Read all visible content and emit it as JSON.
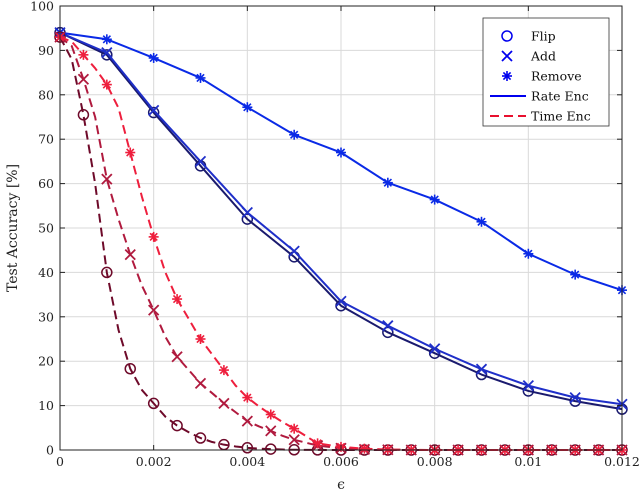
{
  "chart_data": {
    "type": "line",
    "title": "",
    "xlabel": "ϵ",
    "ylabel": "Test Accuracy [%]",
    "xlim": [
      0,
      0.012
    ],
    "ylim": [
      0,
      100
    ],
    "xticks": [
      0,
      0.002,
      0.004,
      0.006,
      0.008,
      0.01,
      0.012
    ],
    "xtick_labels": [
      "0",
      "0.002",
      "0.004",
      "0.006",
      "0.008",
      "0.01",
      "0.012"
    ],
    "yticks": [
      0,
      10,
      20,
      30,
      40,
      50,
      60,
      70,
      80,
      90,
      100
    ],
    "ytick_labels": [
      "0",
      "10",
      "20",
      "30",
      "40",
      "50",
      "60",
      "70",
      "80",
      "90",
      "100"
    ],
    "grid": true,
    "legend_position": "top-right",
    "legend": [
      {
        "label": "Flip",
        "kind": "marker",
        "marker": "circle",
        "color": "#0000ee"
      },
      {
        "label": "Add",
        "kind": "marker",
        "marker": "cross",
        "color": "#0000ee"
      },
      {
        "label": "Remove",
        "kind": "marker",
        "marker": "asterisk",
        "color": "#0000ee"
      },
      {
        "label": "Rate Enc",
        "kind": "line",
        "dash": "solid",
        "color": "#0000ee"
      },
      {
        "label": "Time Enc",
        "kind": "line",
        "dash": "dashed",
        "color": "#e8102e"
      }
    ],
    "series": [
      {
        "encoding": "Rate Enc",
        "perturbation": "Flip",
        "marker": "circle",
        "dash": "solid",
        "color": "#1a1a6e",
        "x": [
          0,
          0.001,
          0.002,
          0.003,
          0.004,
          0.005,
          0.006,
          0.007,
          0.008,
          0.009,
          0.01,
          0.011,
          0.012
        ],
        "y": [
          94,
          89,
          76,
          64,
          52,
          43.5,
          32.5,
          26.5,
          21.8,
          17,
          13.3,
          11,
          9.2
        ]
      },
      {
        "encoding": "Rate Enc",
        "perturbation": "Add",
        "marker": "cross",
        "dash": "solid",
        "color": "#1f2fc9",
        "x": [
          0,
          0.001,
          0.002,
          0.003,
          0.004,
          0.005,
          0.006,
          0.007,
          0.008,
          0.009,
          0.01,
          0.011,
          0.012
        ],
        "y": [
          94,
          89.5,
          76.5,
          65,
          53.5,
          44.8,
          33.5,
          28,
          22.8,
          18.2,
          14.5,
          11.8,
          10.3
        ]
      },
      {
        "encoding": "Rate Enc",
        "perturbation": "Remove",
        "marker": "asterisk",
        "dash": "solid",
        "color": "#0a2ae6",
        "x": [
          0,
          0.001,
          0.002,
          0.003,
          0.004,
          0.005,
          0.006,
          0.007,
          0.008,
          0.009,
          0.01,
          0.011,
          0.012
        ],
        "y": [
          94,
          92.5,
          88.3,
          83.8,
          77.2,
          71,
          67,
          60.2,
          56.4,
          51.4,
          44.2,
          39.5,
          36
        ]
      },
      {
        "encoding": "Time Enc",
        "perturbation": "Flip",
        "marker": "circle",
        "dash": "dashed",
        "color": "#6e0a2a",
        "x": [
          0,
          0.00025,
          0.0005,
          0.00075,
          0.001,
          0.00125,
          0.0015,
          0.00175,
          0.002,
          0.00225,
          0.0025,
          0.00275,
          0.003,
          0.00325,
          0.0035,
          0.00375,
          0.004,
          0.00425,
          0.0045,
          0.00475,
          0.005,
          0.0055,
          0.006,
          0.0065,
          0.007,
          0.0075,
          0.008,
          0.0085,
          0.009,
          0.0095,
          0.01,
          0.0105,
          0.011,
          0.0115,
          0.012
        ],
        "y": [
          93,
          88,
          75.5,
          60,
          40,
          27,
          18.3,
          13.5,
          10.5,
          7.5,
          5.5,
          4,
          2.7,
          1.8,
          1.2,
          0.8,
          0.5,
          0.3,
          0.2,
          0.1,
          0.05,
          0.02,
          0,
          0,
          0,
          0,
          0,
          0,
          0,
          0,
          0,
          0,
          0,
          0,
          0
        ],
        "marker_x": [
          0,
          0.0005,
          0.001,
          0.0015,
          0.002,
          0.0025,
          0.003,
          0.0035,
          0.004,
          0.0045,
          0.005,
          0.0055,
          0.006,
          0.0065,
          0.007,
          0.0075,
          0.008,
          0.0085,
          0.009,
          0.0095,
          0.01,
          0.0105,
          0.011,
          0.0115,
          0.012
        ],
        "marker_y": [
          93,
          75.5,
          40,
          18.3,
          10.5,
          5.5,
          2.7,
          1.2,
          0.5,
          0.2,
          0.05,
          0.02,
          0,
          0,
          0,
          0,
          0,
          0,
          0,
          0,
          0,
          0,
          0,
          0,
          0
        ]
      },
      {
        "encoding": "Time Enc",
        "perturbation": "Add",
        "marker": "cross",
        "dash": "dashed",
        "color": "#b01a3e",
        "x": [
          0,
          0.00025,
          0.0005,
          0.00075,
          0.001,
          0.00125,
          0.0015,
          0.00175,
          0.002,
          0.00225,
          0.0025,
          0.00275,
          0.003,
          0.00325,
          0.0035,
          0.00375,
          0.004,
          0.00425,
          0.0045,
          0.00475,
          0.005,
          0.0055,
          0.006,
          0.0065,
          0.007,
          0.0075,
          0.008,
          0.0085,
          0.009,
          0.0095,
          0.01,
          0.0105,
          0.011,
          0.0115,
          0.012
        ],
        "y": [
          93,
          91,
          83.5,
          75,
          61,
          52,
          44,
          37,
          31.5,
          25.5,
          21,
          18,
          15,
          12.8,
          10.5,
          8.5,
          6.5,
          5.3,
          4.3,
          3.2,
          2.3,
          1,
          0.4,
          0.15,
          0.05,
          0,
          0,
          0,
          0,
          0,
          0,
          0,
          0,
          0,
          0
        ],
        "marker_x": [
          0,
          0.0005,
          0.001,
          0.0015,
          0.002,
          0.0025,
          0.003,
          0.0035,
          0.004,
          0.0045,
          0.005,
          0.0055,
          0.006,
          0.0065,
          0.007,
          0.0075,
          0.008,
          0.0085,
          0.009,
          0.0095,
          0.01,
          0.0105,
          0.011,
          0.0115,
          0.012
        ],
        "marker_y": [
          93,
          83.5,
          61,
          44,
          31.5,
          21,
          15,
          10.5,
          6.5,
          4.3,
          2.3,
          1,
          0.4,
          0.15,
          0.05,
          0,
          0,
          0,
          0,
          0,
          0,
          0,
          0,
          0,
          0
        ]
      },
      {
        "encoding": "Time Enc",
        "perturbation": "Remove",
        "marker": "asterisk",
        "dash": "dashed",
        "color": "#ee1f3d",
        "x": [
          0,
          0.00025,
          0.0005,
          0.00075,
          0.001,
          0.00125,
          0.0015,
          0.00175,
          0.002,
          0.00225,
          0.0025,
          0.00275,
          0.003,
          0.00325,
          0.0035,
          0.00375,
          0.004,
          0.00425,
          0.0045,
          0.00475,
          0.005,
          0.0055,
          0.006,
          0.0065,
          0.007,
          0.0075,
          0.008,
          0.0085,
          0.009,
          0.0095,
          0.01,
          0.0105,
          0.011,
          0.0115,
          0.012
        ],
        "y": [
          93,
          92,
          89,
          86,
          82.3,
          77,
          67,
          57,
          48,
          40,
          34,
          29.5,
          25,
          21.5,
          18,
          14.5,
          11.8,
          9.8,
          8,
          6.3,
          4.8,
          1.5,
          0.7,
          0.3,
          0.1,
          0.05,
          0,
          0,
          0,
          0,
          0,
          0,
          0,
          0,
          0
        ],
        "marker_x": [
          0,
          0.0005,
          0.001,
          0.0015,
          0.002,
          0.0025,
          0.003,
          0.0035,
          0.004,
          0.0045,
          0.005,
          0.0055,
          0.006,
          0.0065,
          0.007,
          0.0075,
          0.008,
          0.0085,
          0.009,
          0.0095,
          0.01,
          0.0105,
          0.011,
          0.0115,
          0.012
        ],
        "marker_y": [
          93,
          89,
          82.3,
          67,
          48,
          34,
          25,
          18,
          11.8,
          8,
          4.8,
          1.5,
          0.7,
          0.3,
          0.1,
          0.05,
          0,
          0,
          0,
          0,
          0,
          0,
          0,
          0,
          0
        ]
      }
    ]
  }
}
